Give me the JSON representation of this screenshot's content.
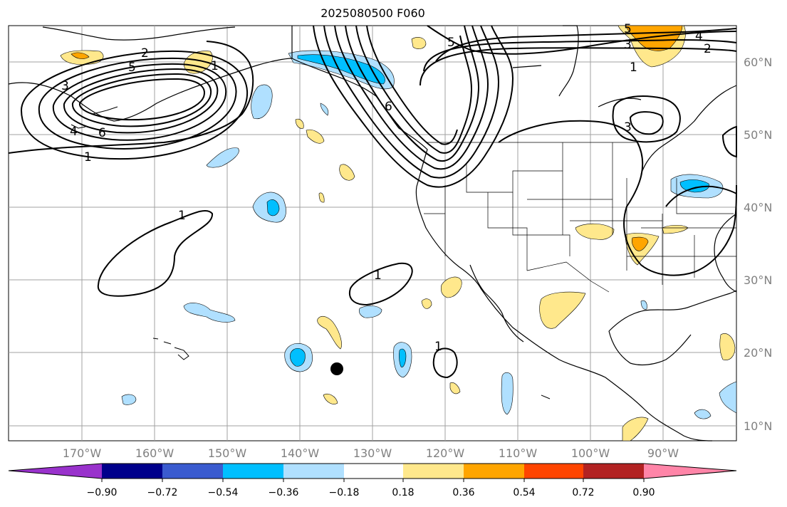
{
  "title": "2025080500 F060",
  "lat_labels": [
    "60°N",
    "50°N",
    "40°N",
    "30°N",
    "20°N",
    "10°N"
  ],
  "lon_labels": [
    "170°W",
    "160°W",
    "150°W",
    "140°W",
    "130°W",
    "120°W",
    "110°W",
    "100°W",
    "90°W"
  ],
  "contour_labels": [
    "2",
    "3",
    "5",
    "4",
    "6",
    "1",
    "1",
    "1",
    "1",
    "5",
    "6",
    "5",
    "3",
    "2",
    "4",
    "1",
    "3",
    "1"
  ],
  "colorbar": {
    "tick_labels": [
      "−0.90",
      "−0.72",
      "−0.54",
      "−0.36",
      "−0.18",
      "0.18",
      "0.36",
      "0.54",
      "0.72",
      "0.90"
    ],
    "colors": [
      "#9932cc",
      "#00008b",
      "#3a5bcf",
      "#00bfff",
      "#b0e0ff",
      "#ffffff",
      "#ffe88c",
      "#ffa500",
      "#ff4500",
      "#b22222",
      "#ff85a8"
    ]
  },
  "colors": {
    "neg_light": "#b0e0ff",
    "neg_mid": "#00bfff",
    "pos_light": "#ffe88c",
    "pos_mid": "#ffa500",
    "gridline": "#a0a0a0",
    "axis_text": "#808080"
  }
}
